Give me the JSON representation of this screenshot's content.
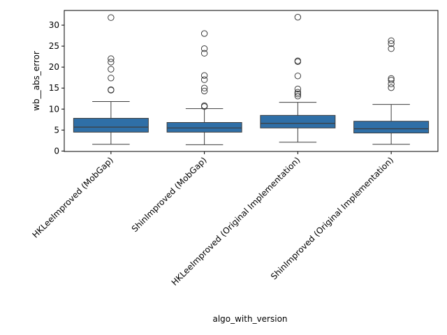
{
  "chart_data": {
    "type": "box",
    "title": "",
    "xlabel": "algo_with_version",
    "ylabel": "wb__abs_error",
    "ylim": [
      -0.1,
      33.5
    ],
    "y_ticks": [
      0,
      5,
      10,
      15,
      20,
      25,
      30
    ],
    "grid": false,
    "color": "#2f6fa7",
    "categories": [
      "HKLeeImproved (MobGap)",
      "ShinImproved (MobGap)",
      "HKLeeImproved (Original Implementation)",
      "ShinImproved (Original Implementation)"
    ],
    "boxes": [
      {
        "whisker_low": 1.6,
        "q1": 4.5,
        "median": 5.7,
        "q3": 7.8,
        "whisker_high": 11.8,
        "outliers": [
          14.5,
          14.6,
          17.4,
          19.5,
          21.2,
          22.0,
          31.8
        ]
      },
      {
        "whisker_low": 1.5,
        "q1": 4.5,
        "median": 5.5,
        "q3": 6.8,
        "whisker_high": 10.1,
        "outliers": [
          10.6,
          10.8,
          14.3,
          15.0,
          17.0,
          18.0,
          23.3,
          24.4,
          28.0
        ]
      },
      {
        "whisker_low": 2.1,
        "q1": 5.5,
        "median": 6.6,
        "q3": 8.5,
        "whisker_high": 11.6,
        "outliers": [
          13.1,
          13.6,
          14.0,
          14.8,
          17.9,
          21.3,
          21.5,
          31.9
        ]
      },
      {
        "whisker_low": 1.6,
        "q1": 4.3,
        "median": 5.3,
        "q3": 7.1,
        "whisker_high": 11.1,
        "outliers": [
          15.1,
          16.0,
          16.9,
          17.3,
          24.4,
          25.6,
          26.3
        ]
      }
    ]
  }
}
